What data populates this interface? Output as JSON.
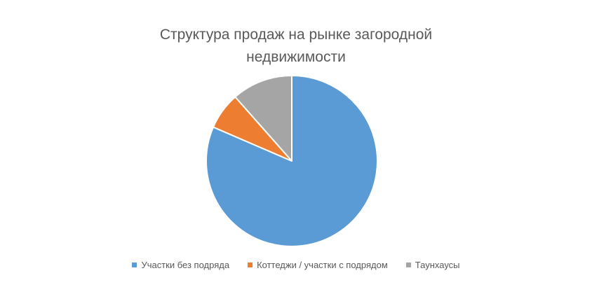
{
  "chart_data": {
    "type": "pie",
    "title": "Структура продаж на рынке загородной недвижимости",
    "categories": [
      "Участки без подряда",
      "Коттеджи / участки с подрядом",
      "Таунхаусы"
    ],
    "values": [
      81.5,
      7,
      11.5
    ],
    "colors": [
      "#5B9BD5",
      "#ED7D31",
      "#A5A5A5"
    ],
    "start_angle_deg": 0,
    "direction": "clockwise",
    "legend_position": "bottom"
  }
}
